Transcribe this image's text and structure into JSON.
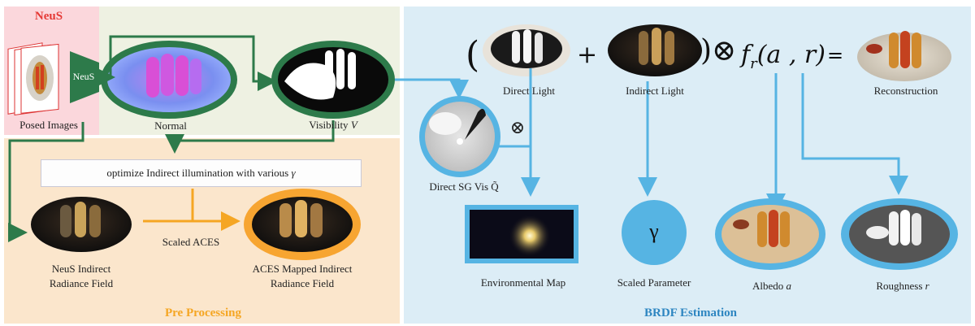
{
  "neus": {
    "title": "NeuS",
    "block_label": "NeuS",
    "posed_images": "Posed Images",
    "normal": "Normal",
    "visibility": "Visibility ",
    "visibility_var": "V"
  },
  "preprocessing": {
    "title": "Pre Processing",
    "optimize_text": "optimize Indirect illumination with various ",
    "optimize_var": "γ",
    "scaled_aces": "Scaled ACES",
    "neus_indirect_line1": "NeuS Indirect",
    "neus_indirect_line2": "Radiance Field",
    "aces_line1": "ACES Mapped Indirect",
    "aces_line2": "Radiance Field"
  },
  "brdf": {
    "title": "BRDF Estimation",
    "direct_light": "Direct Light",
    "indirect_light": "Indirect Light",
    "reconstruction": "Reconstruction",
    "direct_sg_vis": "Direct SG Vis  Q̃",
    "otimes_symbol": "⊗",
    "environmental_map": "Environmental Map",
    "gamma_symbol": "γ",
    "scaled_parameter": "Scaled Parameter",
    "albedo": "Albedo ",
    "albedo_var": "a",
    "roughness": "Roughness ",
    "roughness_var": "r"
  },
  "formula": {
    "open_paren": "(",
    "plus": "+",
    "close_otimes": ")⊗",
    "func": "f",
    "sub": "r",
    "args": "(a , r)",
    "equals": "="
  },
  "colors": {
    "neus_bg": "#fbd7dc",
    "neus_green_bg": "#eef1e2",
    "preproc_bg": "#fbe6cc",
    "brdf_bg": "#dcedf6",
    "green_arrow": "#2d7a4a",
    "orange_arrow": "#f5a623",
    "blue_arrow": "#56b4e3",
    "neus_title": "#e53935",
    "preproc_title": "#f5a623",
    "brdf_title": "#2e86c1"
  }
}
